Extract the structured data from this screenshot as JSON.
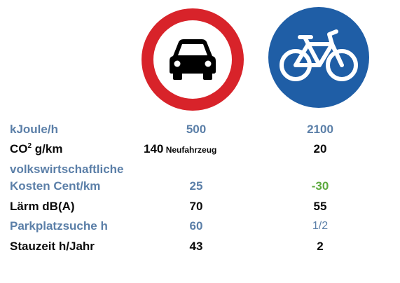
{
  "signs": [
    {
      "name": "no-motor-vehicles-sign",
      "icon": "car-icon",
      "ring_color": "#d8232a",
      "symbol_color": "#000000"
    },
    {
      "name": "cycle-path-sign",
      "icon": "bicycle-icon",
      "background_color": "#1f5ea6",
      "symbol_color": "#ffffff"
    }
  ],
  "colors": {
    "label_blue": "#5b7fa8",
    "text_black": "#0a0a0a",
    "positive_green": "#5ca93d"
  },
  "table": {
    "rows": [
      {
        "label": "kJoule/h",
        "car": "500",
        "bike": "2100"
      },
      {
        "label_main": "CO",
        "label_sup": "2",
        "label_rest": " g/km",
        "car": "140",
        "car_note": " Neufahrzeug",
        "bike": "20"
      },
      {
        "label": "volkswirtschaftliche"
      },
      {
        "label": "Kosten Cent/km",
        "car": "25",
        "bike": "-30"
      },
      {
        "label": "Lärm dB(A)",
        "car": "70",
        "bike": "55"
      },
      {
        "label": "Parkplatzsuche h",
        "car": "60",
        "bike": "1/2"
      },
      {
        "label": "Stauzeit h/Jahr",
        "car": "43",
        "bike": "2"
      }
    ]
  }
}
